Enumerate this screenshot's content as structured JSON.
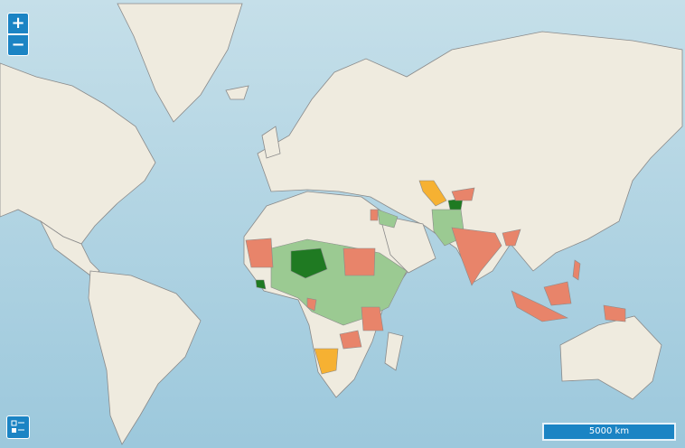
{
  "map": {
    "zoom_in": "+",
    "zoom_out": "−",
    "scale": "5000 km"
  }
}
